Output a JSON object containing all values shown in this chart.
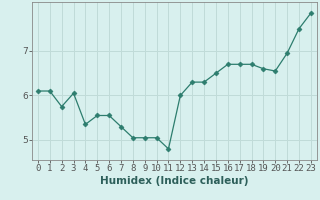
{
  "x": [
    0,
    1,
    2,
    3,
    4,
    5,
    6,
    7,
    8,
    9,
    10,
    11,
    12,
    13,
    14,
    15,
    16,
    17,
    18,
    19,
    20,
    21,
    22,
    23
  ],
  "y": [
    6.1,
    6.1,
    5.75,
    6.05,
    5.35,
    5.55,
    5.55,
    5.3,
    5.05,
    5.05,
    5.05,
    4.8,
    6.0,
    6.3,
    6.3,
    6.5,
    6.7,
    6.7,
    6.7,
    6.6,
    6.55,
    6.95,
    7.5,
    7.85
  ],
  "line_color": "#2d7d6e",
  "marker": "D",
  "marker_size": 2.5,
  "bg_color": "#d8f0ee",
  "grid_color": "#c0dbd8",
  "xlabel": "Humidex (Indice chaleur)",
  "xlabel_fontsize": 7.5,
  "yticks": [
    5,
    6,
    7
  ],
  "xtick_labels": [
    "0",
    "1",
    "2",
    "3",
    "4",
    "5",
    "6",
    "7",
    "8",
    "9",
    "10",
    "11",
    "12",
    "13",
    "14",
    "15",
    "16",
    "17",
    "18",
    "19",
    "20",
    "21",
    "22",
    "23"
  ],
  "xlim": [
    -0.5,
    23.5
  ],
  "ylim": [
    4.55,
    8.1
  ],
  "tick_fontsize": 6.5,
  "line_color_text": "#2d5f5a"
}
